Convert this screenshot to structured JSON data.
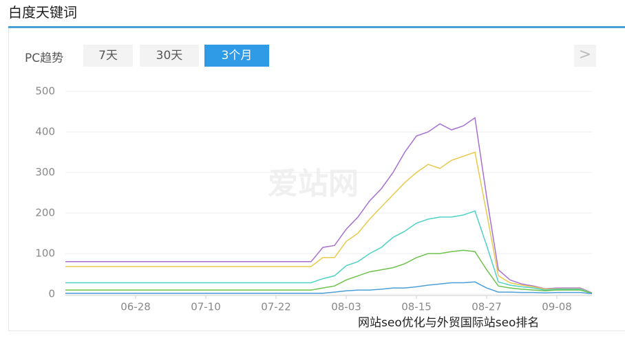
{
  "header": {
    "title": "白度天键词"
  },
  "tabs": {
    "label": "PC趋势",
    "items": [
      "7天",
      "30天",
      "3个月"
    ],
    "active": 2,
    "next": ">"
  },
  "watermark": "爱站网",
  "footer": "网站seo优化与外贸国际站seo排名",
  "chart_data": {
    "type": "line",
    "categories": [
      null,
      null,
      null,
      null,
      null,
      null,
      "06-28",
      null,
      null,
      null,
      null,
      null,
      "07-10",
      null,
      null,
      null,
      null,
      null,
      "07-22",
      null,
      null,
      null,
      null,
      null,
      "08-03",
      null,
      null,
      null,
      null,
      null,
      "08-15",
      null,
      null,
      null,
      null,
      null,
      "08-27",
      null,
      null,
      null,
      null,
      null,
      "09-08",
      null,
      null,
      null
    ],
    "ylim": [
      0,
      500
    ],
    "yticks": [
      0,
      100,
      200,
      300,
      400,
      500
    ],
    "grid": true,
    "series": [
      {
        "color": "#a66fd1",
        "values": [
          80,
          80,
          80,
          80,
          80,
          80,
          80,
          80,
          80,
          80,
          80,
          80,
          80,
          80,
          80,
          80,
          80,
          80,
          80,
          80,
          80,
          80,
          115,
          120,
          160,
          190,
          230,
          260,
          300,
          350,
          390,
          400,
          420,
          405,
          415,
          435,
          240,
          60,
          35,
          25,
          20,
          13,
          15,
          15,
          15,
          3
        ]
      },
      {
        "color": "#e8c94a",
        "values": [
          68,
          68,
          68,
          68,
          68,
          68,
          68,
          68,
          68,
          68,
          68,
          68,
          68,
          68,
          68,
          68,
          68,
          68,
          68,
          68,
          68,
          68,
          90,
          90,
          130,
          150,
          185,
          215,
          245,
          275,
          300,
          320,
          310,
          330,
          340,
          350,
          200,
          45,
          28,
          22,
          18,
          12,
          13,
          13,
          13,
          2
        ]
      },
      {
        "color": "#4fd1c5",
        "values": [
          28,
          28,
          28,
          28,
          28,
          28,
          28,
          28,
          28,
          28,
          28,
          28,
          28,
          28,
          28,
          28,
          28,
          28,
          28,
          28,
          28,
          28,
          38,
          45,
          70,
          80,
          100,
          115,
          140,
          155,
          175,
          185,
          190,
          190,
          195,
          205,
          120,
          30,
          22,
          18,
          15,
          10,
          12,
          12,
          12,
          2
        ]
      },
      {
        "color": "#6cc24a",
        "values": [
          10,
          10,
          10,
          10,
          10,
          10,
          10,
          10,
          10,
          10,
          10,
          10,
          10,
          10,
          10,
          10,
          10,
          10,
          10,
          10,
          10,
          10,
          15,
          20,
          35,
          45,
          55,
          60,
          65,
          75,
          90,
          100,
          100,
          105,
          108,
          105,
          60,
          20,
          15,
          12,
          10,
          8,
          10,
          10,
          10,
          2
        ]
      },
      {
        "color": "#4a9fd8",
        "values": [
          2,
          2,
          2,
          2,
          2,
          2,
          2,
          2,
          2,
          2,
          2,
          2,
          2,
          2,
          2,
          2,
          2,
          2,
          2,
          2,
          2,
          2,
          2,
          5,
          8,
          10,
          10,
          12,
          15,
          15,
          18,
          22,
          25,
          28,
          28,
          30,
          15,
          5,
          5,
          4,
          4,
          3,
          4,
          4,
          4,
          1
        ]
      }
    ]
  }
}
